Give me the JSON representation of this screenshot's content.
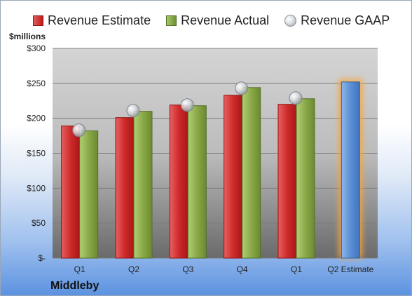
{
  "legend": {
    "estimate": "Revenue Estimate",
    "actual": "Revenue Actual",
    "gaap": "Revenue GAAP"
  },
  "unit_label": "$millions",
  "company": "Middleby",
  "colors": {
    "estimate": "#c62828",
    "actual": "#7f9c3e",
    "forecast": "#5b8fd6",
    "gaap": "#c9ccd1"
  },
  "chart_data": {
    "type": "bar",
    "categories": [
      "Q1",
      "Q2",
      "Q3",
      "Q4",
      "Q1",
      "Q2 Estimate"
    ],
    "y_ticks": [
      "$-",
      "$50",
      "$100",
      "$150",
      "$200",
      "$250",
      "$300"
    ],
    "ylim": [
      0,
      300
    ],
    "ylabel": "$millions",
    "grid": true,
    "legend_position": "top",
    "series": [
      {
        "name": "Revenue Estimate",
        "values": [
          189,
          201,
          219,
          233,
          220,
          null
        ]
      },
      {
        "name": "Revenue Actual",
        "values": [
          182,
          210,
          218,
          244,
          228,
          252
        ]
      },
      {
        "name": "Revenue GAAP",
        "values": [
          183,
          211,
          219,
          243,
          229,
          null
        ]
      }
    ],
    "highlighted_category": "Q2 Estimate"
  }
}
